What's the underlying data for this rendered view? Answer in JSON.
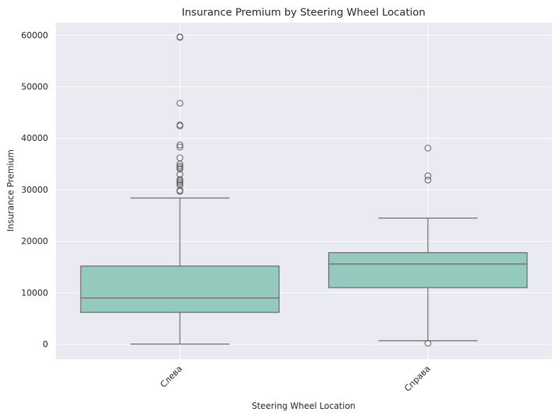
{
  "chart_data": {
    "type": "box",
    "title": "Insurance Premium by Steering Wheel Location",
    "xlabel": "Steering Wheel Location",
    "ylabel": "Insurance Premium",
    "ylim": [
      -2800,
      62500
    ],
    "yticks": [
      0,
      10000,
      20000,
      30000,
      40000,
      50000,
      60000
    ],
    "ytick_labels": [
      "0",
      "10000",
      "20000",
      "30000",
      "40000",
      "50000",
      "60000"
    ],
    "grid": true,
    "categories": [
      "Слева",
      "Справа"
    ],
    "boxes": [
      {
        "category": "Слева",
        "whisker_low": 50,
        "q1": 6200,
        "median": 9000,
        "q3": 15200,
        "whisker_high": 28400,
        "outliers": [
          29700,
          29900,
          30900,
          31200,
          31500,
          31800,
          32000,
          33000,
          34000,
          34300,
          34600,
          35000,
          36200,
          38300,
          38700,
          42400,
          42600,
          46800,
          59600,
          59700
        ]
      },
      {
        "category": "Справа",
        "whisker_low": 700,
        "q1": 11000,
        "median": 15600,
        "q3": 17800,
        "whisker_high": 24500,
        "outliers": [
          200,
          31900,
          32700,
          38100
        ]
      }
    ],
    "colors": {
      "box_fill": "#94c9bd",
      "line": "#636363",
      "background": "#eaeaf2",
      "grid": "#ffffff"
    }
  }
}
